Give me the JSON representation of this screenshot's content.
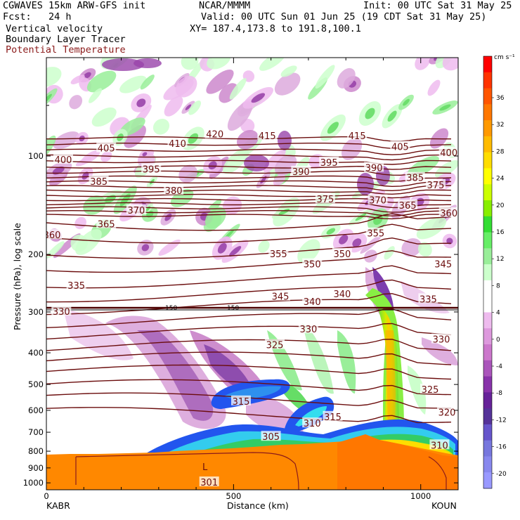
{
  "header": {
    "model_line": "CGWAVES 15km ARW-GFS init",
    "org": "NCAR/MMMM",
    "init": "Init: 00 UTC Sat 31 May 25",
    "fcst": "Fcst:   24 h",
    "valid": "Valid: 00 UTC Sun 01 Jun 25 (19 CDT Sat 31 May 25)",
    "field1": "Vertical velocity",
    "xy": "XY= 187.4,173.8 to 191.8,100.1",
    "field2": "Boundary Layer Tracer",
    "field3": "Potential Temperature"
  },
  "axes": {
    "ylabel": "Pressure (hPa), log scale",
    "xlabel": "Distance (km)",
    "left_station": "KABR",
    "right_station": "KOUN"
  },
  "colorbar": {
    "unit": "cm s⁻¹",
    "ticks": [
      "36",
      "32",
      "28",
      "24",
      "20",
      "16",
      "12",
      "8",
      "4",
      "0",
      "-4",
      "-8",
      "-12",
      "-16",
      "-20"
    ],
    "colors": [
      "#ff0000",
      "#ff3300",
      "#ff5500",
      "#ff7700",
      "#ff9900",
      "#ffbb00",
      "#ffdd00",
      "#ffff00",
      "#ccff00",
      "#88ee00",
      "#33dd33",
      "#66ee66",
      "#99ee99",
      "#ccffcc",
      "#ffffff",
      "#ffffff",
      "#eebbee",
      "#dd99dd",
      "#cc77cc",
      "#aa55bb",
      "#8833aa",
      "#662299",
      "#553399",
      "#6655cc",
      "#7777dd",
      "#8888ee",
      "#9999ff"
    ]
  },
  "chart_data": {
    "type": "heatmap",
    "title": "Vertical velocity, Boundary Layer Tracer, Potential Temperature",
    "xlabel": "Distance (km)",
    "ylabel": "Pressure (hPa), log scale",
    "x_ticks": [
      0,
      500,
      1000
    ],
    "xlim": [
      0,
      1100
    ],
    "y_ticks": [
      100,
      200,
      300,
      400,
      500,
      600,
      700,
      800,
      900,
      1000
    ],
    "ylim": [
      1050,
      50
    ],
    "y_scale": "log",
    "tropopause_label": "150",
    "theta_contours": [
      {
        "label": "301",
        "x": 435,
        "p": 1000
      },
      {
        "label": "305",
        "x": 600,
        "p": 725
      },
      {
        "label": "310",
        "x": 710,
        "p": 660
      },
      {
        "label": "310",
        "x": 1050,
        "p": 770
      },
      {
        "label": "315",
        "x": 520,
        "p": 565
      },
      {
        "label": "315",
        "x": 765,
        "p": 630
      },
      {
        "label": "320",
        "x": 1070,
        "p": 610
      },
      {
        "label": "325",
        "x": 610,
        "p": 380
      },
      {
        "label": "325",
        "x": 1025,
        "p": 520
      },
      {
        "label": "330",
        "x": 40,
        "p": 300
      },
      {
        "label": "330",
        "x": 700,
        "p": 340
      },
      {
        "label": "330",
        "x": 1055,
        "p": 365
      },
      {
        "label": "335",
        "x": 80,
        "p": 250
      },
      {
        "label": "335",
        "x": 1020,
        "p": 275
      },
      {
        "label": "340",
        "x": 710,
        "p": 280
      },
      {
        "label": "340",
        "x": 790,
        "p": 265
      },
      {
        "label": "345",
        "x": 625,
        "p": 270
      },
      {
        "label": "345",
        "x": 1060,
        "p": 215
      },
      {
        "label": "350",
        "x": 710,
        "p": 215
      },
      {
        "label": "350",
        "x": 790,
        "p": 200
      },
      {
        "label": "355",
        "x": 620,
        "p": 200
      },
      {
        "label": "355",
        "x": 880,
        "p": 173
      },
      {
        "label": "360",
        "x": 15,
        "p": 175
      },
      {
        "label": "360",
        "x": 1075,
        "p": 150
      },
      {
        "label": "365",
        "x": 160,
        "p": 162
      },
      {
        "label": "365",
        "x": 965,
        "p": 142
      },
      {
        "label": "370",
        "x": 240,
        "p": 147
      },
      {
        "label": "370",
        "x": 885,
        "p": 137
      },
      {
        "label": "375",
        "x": 745,
        "p": 136
      },
      {
        "label": "375",
        "x": 1040,
        "p": 123
      },
      {
        "label": "380",
        "x": 340,
        "p": 128
      },
      {
        "label": "385",
        "x": 140,
        "p": 120
      },
      {
        "label": "385",
        "x": 985,
        "p": 117
      },
      {
        "label": "390",
        "x": 680,
        "p": 112
      },
      {
        "label": "390",
        "x": 875,
        "p": 109
      },
      {
        "label": "395",
        "x": 280,
        "p": 110
      },
      {
        "label": "395",
        "x": 755,
        "p": 105
      },
      {
        "label": "400",
        "x": 45,
        "p": 103
      },
      {
        "label": "400",
        "x": 1075,
        "p": 98
      },
      {
        "label": "405",
        "x": 160,
        "p": 95
      },
      {
        "label": "405",
        "x": 945,
        "p": 94
      },
      {
        "label": "410",
        "x": 350,
        "p": 92
      },
      {
        "label": "415",
        "x": 590,
        "p": 87
      },
      {
        "label": "415",
        "x": 830,
        "p": 87
      },
      {
        "label": "420",
        "x": 450,
        "p": 86
      }
    ],
    "terrain_label": "L"
  }
}
